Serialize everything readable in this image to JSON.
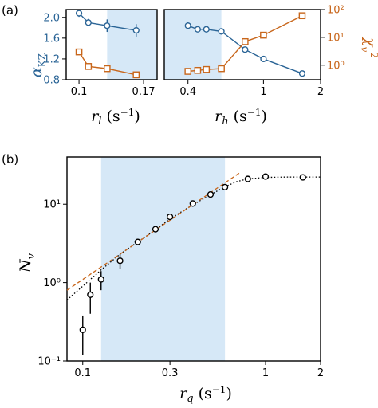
{
  "panel_a_label": "(a)",
  "panel_b_label": "(b)",
  "colors": {
    "blue": "#2a6496",
    "orange": "#c8661b",
    "shade": "#d6e8f7",
    "black": "#000000"
  },
  "chart_data": [
    {
      "type": "line",
      "panel": "a-left",
      "xlabel": "r_l (s⁻¹)",
      "ylabel": "α_KZ",
      "xscale": "log",
      "xlim": [
        0.09,
        0.19
      ],
      "ylim": [
        0.8,
        2.15
      ],
      "yright_lim": [
        0.3,
        100
      ],
      "xticks": [
        0.1,
        0.17
      ],
      "xtick_labels": [
        "0.1",
        "0.17"
      ],
      "yticks": [
        0.8,
        1.2,
        1.6,
        2.0
      ],
      "ytick_labels": [
        "0.8",
        "1.2",
        "1.6",
        "2.0"
      ],
      "shaded_x": [
        0.126,
        0.19
      ],
      "series": [
        {
          "axis": "left",
          "color": "#2a6496",
          "marker": "circle",
          "x": [
            0.1,
            0.108,
            0.126,
            0.16
          ],
          "y": [
            2.08,
            1.9,
            1.84,
            1.75
          ],
          "err": [
            0.07,
            0.07,
            0.12,
            0.12
          ]
        },
        {
          "axis": "right",
          "color": "#c8661b",
          "marker": "square",
          "x": [
            0.1,
            0.108,
            0.126,
            0.16
          ],
          "y": [
            3.0,
            0.9,
            0.75,
            0.45
          ]
        }
      ]
    },
    {
      "type": "line",
      "panel": "a-right",
      "xlabel": "r_h (s⁻¹)",
      "ylabel": "χ_v²",
      "xscale": "log",
      "xlim": [
        0.3,
        2.0
      ],
      "ylim": [
        0.8,
        2.15
      ],
      "yright_lim": [
        0.3,
        100
      ],
      "yscale_right": "log",
      "xticks": [
        0.4,
        1,
        2
      ],
      "xtick_labels": [
        "0.4",
        "1",
        "2"
      ],
      "ytick_labels_right": [
        "10⁰",
        "10¹",
        "10²"
      ],
      "yticks_right": [
        1,
        10,
        100
      ],
      "shaded_x": [
        0.3,
        0.6
      ],
      "series": [
        {
          "axis": "left",
          "color": "#2a6496",
          "marker": "circle",
          "x": [
            0.4,
            0.45,
            0.5,
            0.6,
            0.8,
            1.0,
            1.6
          ],
          "y": [
            1.84,
            1.77,
            1.77,
            1.73,
            1.38,
            1.2,
            0.92
          ],
          "err": [
            0.07,
            0.05,
            0.05,
            0.05,
            0.03,
            0.03,
            0.02
          ]
        },
        {
          "axis": "right",
          "color": "#c8661b",
          "marker": "square",
          "x": [
            0.4,
            0.45,
            0.5,
            0.6,
            0.8,
            1.0,
            1.6
          ],
          "y": [
            0.6,
            0.65,
            0.7,
            0.75,
            7,
            12,
            60
          ]
        }
      ]
    },
    {
      "type": "scatter",
      "panel": "b",
      "xlabel": "r_q (s⁻¹)",
      "ylabel": "N_v",
      "xscale": "log",
      "yscale": "log",
      "xlim": [
        0.082,
        2.0
      ],
      "ylim": [
        0.1,
        40
      ],
      "xticks": [
        0.1,
        0.3,
        1,
        2
      ],
      "xtick_labels": [
        "0.1",
        "0.3",
        "1",
        "2"
      ],
      "yticks": [
        0.1,
        1,
        10
      ],
      "ytick_labels": [
        "10⁻¹",
        "10⁰",
        "10¹"
      ],
      "shaded_x": [
        0.126,
        0.6
      ],
      "points": {
        "x": [
          0.1,
          0.11,
          0.126,
          0.16,
          0.2,
          0.25,
          0.3,
          0.4,
          0.5,
          0.6,
          0.8,
          1.0,
          1.6
        ],
        "y": [
          0.25,
          0.7,
          1.1,
          1.9,
          3.3,
          4.8,
          6.9,
          10.2,
          13.3,
          16.5,
          21.0,
          22.5,
          22.0
        ],
        "err_lo": [
          0.13,
          0.3,
          0.3,
          0.4,
          0.3,
          0.3,
          0.3,
          0.4,
          0.5,
          0.6,
          0.7,
          0.7,
          0.7
        ],
        "err_hi": [
          0.13,
          0.3,
          0.3,
          0.4,
          0.3,
          0.3,
          0.3,
          0.4,
          0.5,
          0.6,
          0.7,
          0.7,
          0.7
        ]
      },
      "fit_line": {
        "color": "#c8661b",
        "style": "dashed",
        "x": [
          0.082,
          0.72
        ],
        "y": [
          0.8,
          25.0
        ]
      },
      "model_curve": {
        "color": "#000000",
        "style": "dotted",
        "x": [
          0.082,
          0.1,
          0.126,
          0.16,
          0.2,
          0.25,
          0.3,
          0.4,
          0.5,
          0.6,
          0.7,
          0.8,
          1.0,
          1.3,
          2.0
        ],
        "y": [
          0.6,
          0.9,
          1.45,
          2.3,
          3.3,
          4.7,
          6.5,
          9.8,
          13.2,
          16.7,
          19.5,
          21.0,
          22.0,
          22.2,
          22.2
        ]
      }
    }
  ]
}
